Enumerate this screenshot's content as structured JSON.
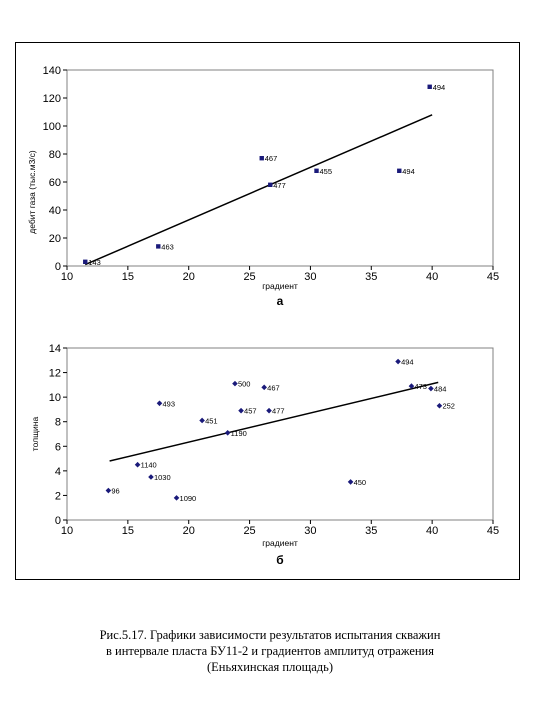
{
  "chart_data": [
    {
      "type": "scatter",
      "panel_label": "а",
      "xlabel": "градиент",
      "ylabel": "дебит газа (тыс.м3/с)",
      "xlim": [
        10,
        45
      ],
      "ylim": [
        0,
        140
      ],
      "xticks": [
        10,
        15,
        20,
        25,
        30,
        35,
        40,
        45
      ],
      "yticks": [
        0,
        20,
        40,
        60,
        80,
        100,
        120,
        140
      ],
      "grid": false,
      "points": [
        {
          "x": 11.5,
          "y": 3,
          "label": "143"
        },
        {
          "x": 17.5,
          "y": 14,
          "label": "463"
        },
        {
          "x": 26,
          "y": 77,
          "label": "467"
        },
        {
          "x": 26.7,
          "y": 58,
          "label": "477"
        },
        {
          "x": 30.5,
          "y": 68,
          "label": "455"
        },
        {
          "x": 37.3,
          "y": 68,
          "label": "494"
        },
        {
          "x": 39.8,
          "y": 128,
          "label": "494"
        }
      ],
      "trendline": {
        "x": [
          11.5,
          40
        ],
        "y": [
          1,
          108
        ]
      }
    },
    {
      "type": "scatter",
      "panel_label": "б",
      "xlabel": "градиент",
      "ylabel": "толщина",
      "xlim": [
        10,
        45
      ],
      "ylim": [
        0,
        14
      ],
      "xticks": [
        10,
        15,
        20,
        25,
        30,
        35,
        40,
        45
      ],
      "yticks": [
        0,
        2,
        4,
        6,
        8,
        10,
        12,
        14
      ],
      "grid": false,
      "points": [
        {
          "x": 13.4,
          "y": 2.4,
          "label": "96"
        },
        {
          "x": 15.8,
          "y": 4.5,
          "label": "1140"
        },
        {
          "x": 16.9,
          "y": 3.5,
          "label": "1030"
        },
        {
          "x": 17.6,
          "y": 9.5,
          "label": "493"
        },
        {
          "x": 19,
          "y": 1.8,
          "label": "1090"
        },
        {
          "x": 21.1,
          "y": 8.1,
          "label": "451"
        },
        {
          "x": 23.2,
          "y": 7.1,
          "label": "1190"
        },
        {
          "x": 23.8,
          "y": 11.1,
          "label": "500"
        },
        {
          "x": 24.3,
          "y": 8.9,
          "label": "457"
        },
        {
          "x": 26.2,
          "y": 10.8,
          "label": "467"
        },
        {
          "x": 26.6,
          "y": 8.9,
          "label": "477"
        },
        {
          "x": 33.3,
          "y": 3.1,
          "label": "450"
        },
        {
          "x": 37.2,
          "y": 12.9,
          "label": "494"
        },
        {
          "x": 38.3,
          "y": 10.9,
          "label": "473"
        },
        {
          "x": 39.9,
          "y": 10.7,
          "label": "484"
        },
        {
          "x": 40.6,
          "y": 9.3,
          "label": "252"
        }
      ],
      "trendline": {
        "x": [
          13.5,
          40.5
        ],
        "y": [
          4.8,
          11.2
        ]
      }
    }
  ],
  "caption": {
    "line1": "Рис.5.17. Графики зависимости результатов испытания скважин",
    "line2": "в интервале пласта БУ11-2 и градиентов амплитуд отражения",
    "line3": "(Еньяхинская площадь)"
  }
}
